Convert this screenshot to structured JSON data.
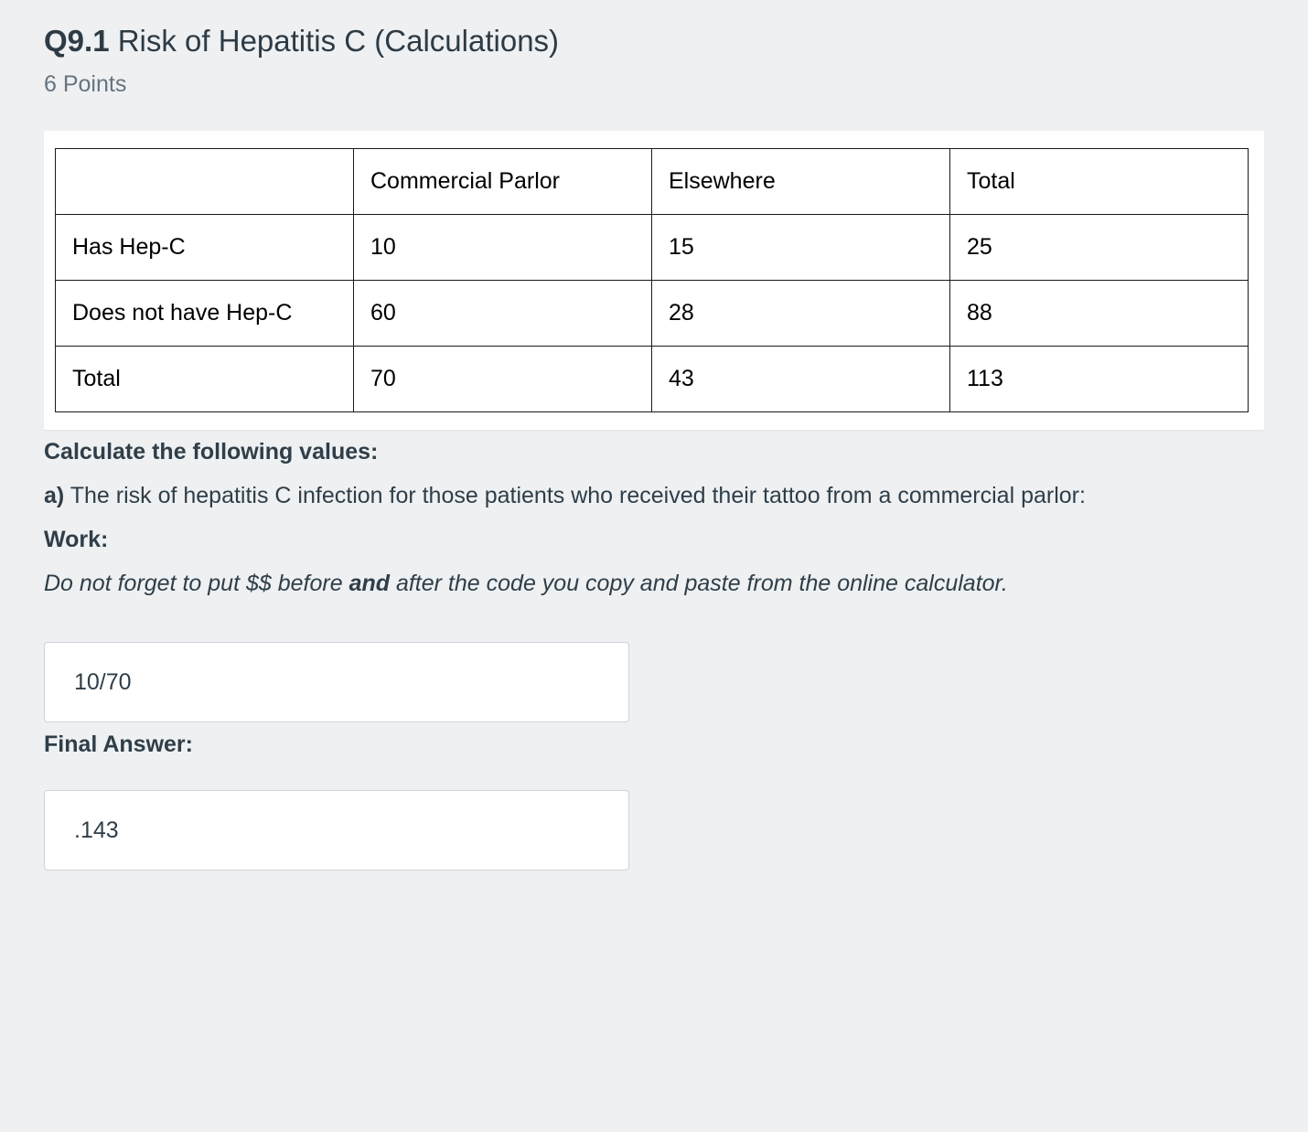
{
  "header": {
    "question_number": "Q9.1",
    "title": "Risk of Hepatitis C (Calculations)",
    "points": "6 Points"
  },
  "table": {
    "headers": [
      "",
      "Commercial Parlor",
      "Elsewhere",
      "Total"
    ],
    "rows": [
      {
        "label": "Has Hep-C",
        "values": [
          "10",
          "15",
          "25"
        ]
      },
      {
        "label": "Does not have Hep-C",
        "values": [
          "60",
          "28",
          "88"
        ]
      },
      {
        "label": "Total",
        "values": [
          "70",
          "43",
          "113"
        ]
      }
    ]
  },
  "body": {
    "instruction": "Calculate the following values:",
    "part_label": "a)",
    "part_text": " The risk of hepatitis C infection for those patients who received their tattoo from a commercial parlor:",
    "work_label": "Work:",
    "note_pre": "Do not forget to put $$ before ",
    "note_bold": "and",
    "note_post": " after the code you copy and paste from the online calculator.",
    "work_value": "10/70",
    "final_label": "Final Answer:",
    "final_value": ".143"
  }
}
